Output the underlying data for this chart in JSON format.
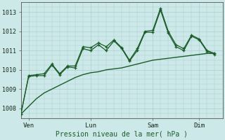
{
  "background_color": "#cce8e8",
  "grid_color": "#aacfcf",
  "line_color": "#1a5c28",
  "xlabel": "Pression niveau de la mer( hPa )",
  "yticks": [
    1008,
    1009,
    1010,
    1011,
    1012,
    1013
  ],
  "ylim": [
    1007.5,
    1013.5
  ],
  "xtick_labels": [
    "Ven",
    "Lun",
    "Sam",
    "Dim"
  ],
  "xtick_positions": [
    1,
    9,
    17,
    23
  ],
  "xlim": [
    0,
    26
  ],
  "series1_x": [
    0,
    1,
    2,
    3,
    4,
    5,
    6,
    7,
    8,
    9,
    10,
    11,
    12,
    13,
    14,
    15,
    16,
    17,
    18,
    19,
    20,
    21,
    22,
    23,
    24,
    25
  ],
  "series1_y": [
    1007.7,
    1008.1,
    1008.5,
    1008.8,
    1009.0,
    1009.2,
    1009.4,
    1009.6,
    1009.75,
    1009.85,
    1009.9,
    1010.0,
    1010.05,
    1010.1,
    1010.2,
    1010.3,
    1010.4,
    1010.5,
    1010.55,
    1010.6,
    1010.65,
    1010.7,
    1010.75,
    1010.8,
    1010.85,
    1010.85
  ],
  "series2_x": [
    0,
    1,
    2,
    3,
    4,
    5,
    6,
    7,
    8,
    9,
    10,
    11,
    12,
    13,
    14,
    15,
    16,
    17,
    18,
    19,
    20,
    21,
    22,
    23,
    24,
    25
  ],
  "series2_y": [
    1007.7,
    1009.7,
    1009.75,
    1009.8,
    1010.3,
    1009.8,
    1010.2,
    1010.2,
    1011.2,
    1011.15,
    1011.4,
    1011.2,
    1011.55,
    1011.15,
    1010.5,
    1011.1,
    1012.0,
    1012.05,
    1013.2,
    1012.0,
    1011.3,
    1011.1,
    1011.8,
    1011.6,
    1011.0,
    1010.85
  ],
  "series3_x": [
    0,
    1,
    2,
    3,
    4,
    5,
    6,
    7,
    8,
    9,
    10,
    11,
    12,
    13,
    14,
    15,
    16,
    17,
    18,
    19,
    20,
    21,
    22,
    23,
    24,
    25
  ],
  "series3_y": [
    1007.7,
    1009.65,
    1009.7,
    1009.7,
    1010.25,
    1009.75,
    1010.15,
    1010.1,
    1011.1,
    1011.0,
    1011.3,
    1011.0,
    1011.5,
    1011.1,
    1010.45,
    1011.0,
    1011.95,
    1011.95,
    1013.1,
    1011.9,
    1011.2,
    1011.0,
    1011.75,
    1011.55,
    1010.95,
    1010.8
  ]
}
